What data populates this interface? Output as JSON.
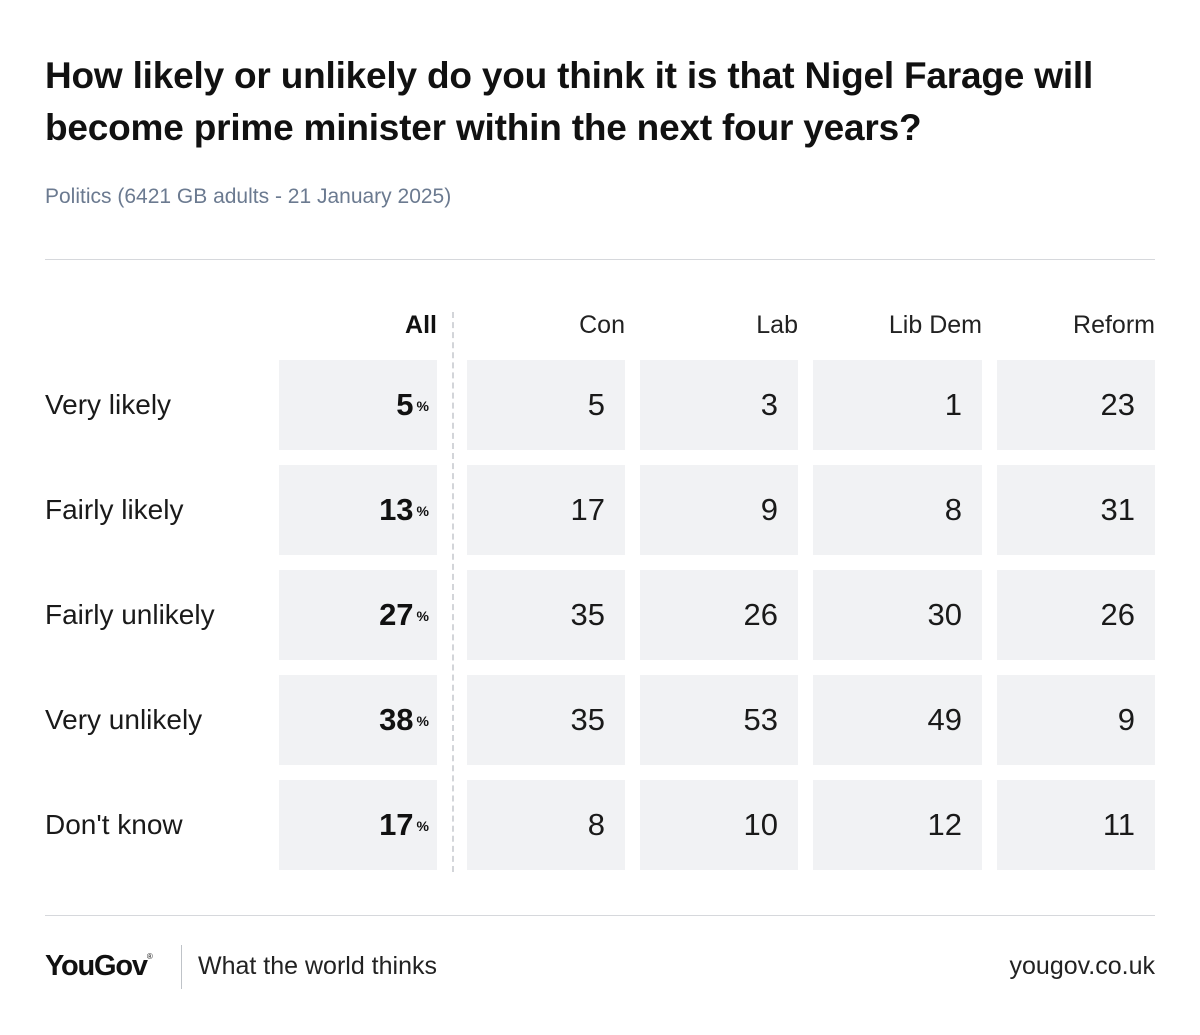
{
  "title": "How likely or unlikely do you think it is that Nigel Farage will become prime minister within the next four years?",
  "subtitle": "Politics (6421 GB adults - 21 January 2025)",
  "colors": {
    "cell_bg": "#f1f2f4",
    "subtitle": "#6b7a90",
    "rule": "#d6d8dc"
  },
  "chart_data": {
    "type": "table",
    "title": "How likely or unlikely do you think it is that Nigel Farage will become prime minister within the next four years?",
    "columns": [
      "All",
      "Con",
      "Lab",
      "Lib Dem",
      "Reform"
    ],
    "all_unit": "%",
    "rows": [
      {
        "label": "Very likely",
        "values": [
          5,
          5,
          3,
          1,
          23
        ]
      },
      {
        "label": "Fairly likely",
        "values": [
          13,
          17,
          9,
          8,
          31
        ]
      },
      {
        "label": "Fairly unlikely",
        "values": [
          27,
          35,
          26,
          30,
          26
        ]
      },
      {
        "label": "Very unlikely",
        "values": [
          38,
          35,
          53,
          49,
          9
        ]
      },
      {
        "label": "Don't know",
        "values": [
          17,
          8,
          10,
          12,
          11
        ]
      }
    ]
  },
  "footer": {
    "logo": "YouGov",
    "logo_mark": "®",
    "tagline": "What the world thinks",
    "site": "yougov.co.uk"
  }
}
